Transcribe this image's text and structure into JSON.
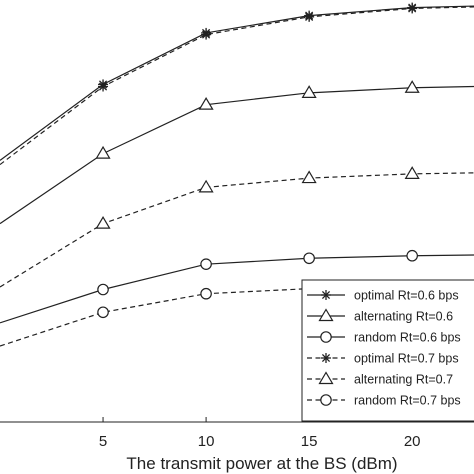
{
  "chart_data": {
    "type": "line",
    "title": "",
    "xlabel": "The transmit power at the BS (dBm)",
    "ylabel": "",
    "x_ticks": [
      5,
      10,
      15,
      20
    ],
    "xlim": [
      0,
      23
    ],
    "ylim": [
      0,
      1
    ],
    "grid": false,
    "legend_position": "bottom-right",
    "x": [
      0,
      5,
      10,
      15,
      20,
      25
    ],
    "series": [
      {
        "name": "optimal Rt=0.6 bps",
        "marker": "asterisk",
        "line": "solid",
        "values": [
          0.62,
          0.8,
          0.922,
          0.963,
          0.982,
          0.988
        ]
      },
      {
        "name": "alternating Rt=0.6",
        "marker": "triangle",
        "line": "solid",
        "values": [
          0.47,
          0.636,
          0.752,
          0.78,
          0.792,
          0.797
        ]
      },
      {
        "name": "random Rt=0.6 bps",
        "marker": "circle",
        "line": "solid",
        "values": [
          0.235,
          0.314,
          0.374,
          0.388,
          0.394,
          0.397
        ]
      },
      {
        "name": "optimal Rt=0.7 bps",
        "marker": "asterisk",
        "line": "dashed",
        "values": [
          0.61,
          0.795,
          0.918,
          0.96,
          0.98,
          0.986
        ]
      },
      {
        "name": "alternating Rt=0.7",
        "marker": "triangle",
        "line": "dashed",
        "values": [
          0.32,
          0.47,
          0.556,
          0.578,
          0.588,
          0.592
        ]
      },
      {
        "name": "random Rt=0.7 bps",
        "marker": "circle",
        "line": "dashed",
        "values": [
          0.18,
          0.26,
          0.304,
          0.316,
          0.322,
          0.325
        ]
      }
    ]
  }
}
